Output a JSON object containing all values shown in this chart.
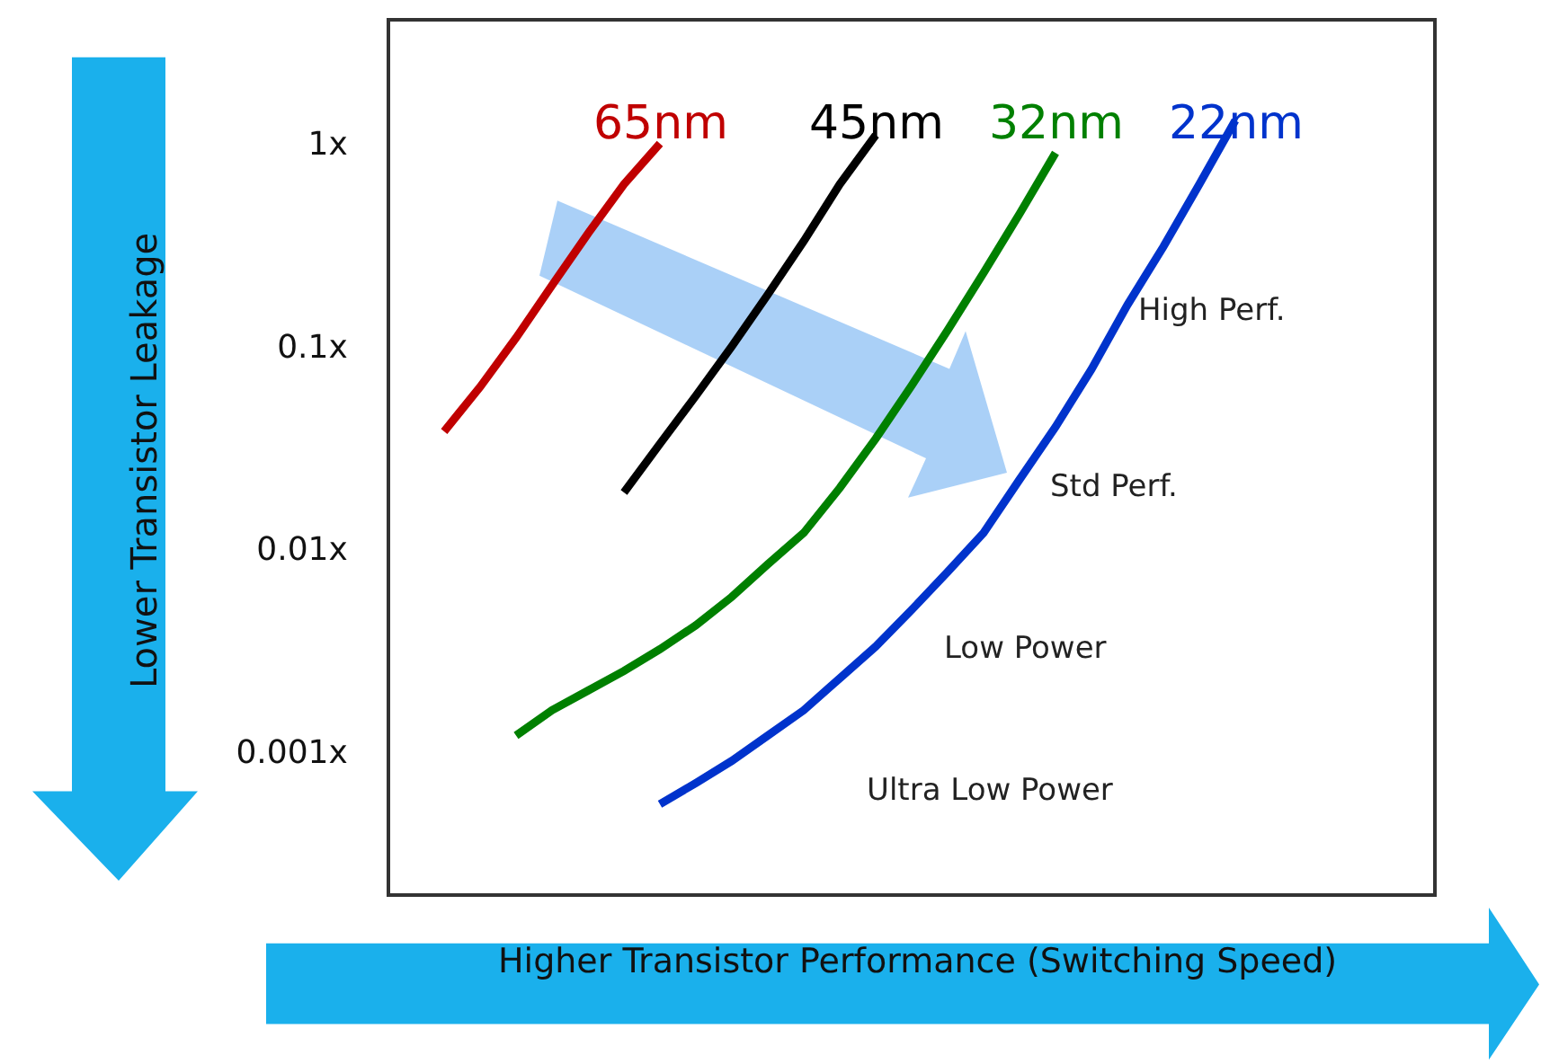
{
  "chart_data": {
    "type": "line",
    "xlabel": "Higher Transistor Performance (Switching Speed)",
    "ylabel": "Lower Transistor Leakage",
    "log": "y",
    "grid": false,
    "legend": false,
    "tick_labels": "y",
    "marker": "none",
    "line_style": "solid",
    "ylim": [
      0.0002,
      4
    ],
    "yticks": [
      {
        "value": 1,
        "label": "1x"
      },
      {
        "value": 0.1,
        "label": "0.1x"
      },
      {
        "value": 0.01,
        "label": "0.01x"
      },
      {
        "value": 0.001,
        "label": "0.001x"
      }
    ],
    "categories": [
      null,
      null,
      null,
      null,
      null,
      null,
      null,
      null,
      null,
      null,
      null,
      null,
      null,
      null,
      null,
      null,
      null,
      null,
      null,
      null,
      null,
      null,
      null,
      null,
      null,
      null,
      null,
      null,
      null
    ],
    "series": [
      {
        "name": "65nm",
        "color": "#c00000",
        "values": [
          null,
          0.038,
          0.063,
          0.11,
          0.2,
          0.36,
          0.63,
          1.0,
          null,
          null,
          null,
          null,
          null,
          null,
          null,
          null,
          null,
          null,
          null,
          null,
          null,
          null,
          null,
          null,
          null,
          null,
          null,
          null,
          null
        ]
      },
      {
        "name": "45nm",
        "color": "#000000",
        "values": [
          null,
          null,
          null,
          null,
          null,
          null,
          0.019,
          0.033,
          0.057,
          0.1,
          0.18,
          0.33,
          0.63,
          1.1,
          null,
          null,
          null,
          null,
          null,
          null,
          null,
          null,
          null,
          null,
          null,
          null,
          null,
          null,
          null
        ]
      },
      {
        "name": "32nm",
        "color": "#008000",
        "values": [
          null,
          null,
          null,
          0.0012,
          0.0016,
          0.002,
          0.0025,
          0.0032,
          0.0042,
          0.0058,
          0.0084,
          0.012,
          0.02,
          0.035,
          0.064,
          0.12,
          0.23,
          0.45,
          0.9,
          null,
          null,
          null,
          null,
          null,
          null,
          null,
          null,
          null,
          null
        ]
      },
      {
        "name": "22nm",
        "color": "#0033cc",
        "values": [
          null,
          null,
          null,
          null,
          null,
          null,
          null,
          0.00055,
          0.0007,
          0.0009,
          0.0012,
          0.0016,
          0.0023,
          0.0033,
          0.005,
          0.0077,
          0.012,
          0.022,
          0.04,
          0.077,
          0.16,
          0.31,
          0.63,
          1.3,
          null,
          null,
          null,
          null,
          null
        ]
      }
    ],
    "annotations": [
      "High Perf.",
      "Std Perf.",
      "Low Power",
      "Ultra Low Power"
    ]
  }
}
